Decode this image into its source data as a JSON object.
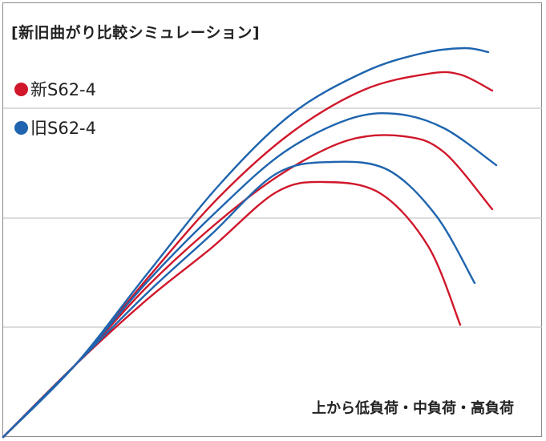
{
  "chart_data": {
    "type": "line",
    "title": "[新旧曲がり比較シミュレーション]",
    "note": "上から低負荷・中負荷・高負荷",
    "grid": true,
    "colors": {
      "new": "#d0172b",
      "old": "#1e64ae"
    },
    "series": [
      {
        "name": "新S62-4",
        "legend_label": "新S62-4",
        "color": "#d0172b"
      },
      {
        "name": "旧S62-4",
        "legend_label": "旧S62-4",
        "color": "#1e64ae"
      }
    ],
    "curves": [
      {
        "series": "新S62-4",
        "load": "低負荷",
        "points": [
          [
            0,
            0
          ],
          [
            90,
            90
          ],
          [
            180,
            198
          ],
          [
            270,
            300
          ],
          [
            360,
            380
          ],
          [
            450,
            433
          ],
          [
            530,
            453
          ],
          [
            570,
            452
          ],
          [
            610,
            432
          ]
        ]
      },
      {
        "series": "旧S62-4",
        "load": "低負荷",
        "points": [
          [
            0,
            0
          ],
          [
            90,
            90
          ],
          [
            180,
            204
          ],
          [
            270,
            315
          ],
          [
            360,
            403
          ],
          [
            450,
            455
          ],
          [
            520,
            478
          ],
          [
            575,
            485
          ],
          [
            605,
            480
          ]
        ]
      },
      {
        "series": "新S62-4",
        "load": "中負荷",
        "points": [
          [
            0,
            0
          ],
          [
            90,
            90
          ],
          [
            180,
            188
          ],
          [
            270,
            270
          ],
          [
            350,
            330
          ],
          [
            430,
            370
          ],
          [
            500,
            375
          ],
          [
            550,
            355
          ],
          [
            610,
            284
          ]
        ]
      },
      {
        "series": "旧S62-4",
        "load": "中負荷",
        "points": [
          [
            0,
            0
          ],
          [
            90,
            90
          ],
          [
            180,
            194
          ],
          [
            270,
            285
          ],
          [
            350,
            355
          ],
          [
            430,
            396
          ],
          [
            490,
            403
          ],
          [
            550,
            385
          ],
          [
            615,
            339
          ]
        ]
      },
      {
        "series": "新S62-4",
        "load": "高負荷",
        "points": [
          [
            0,
            0
          ],
          [
            90,
            90
          ],
          [
            180,
            172
          ],
          [
            260,
            236
          ],
          [
            340,
            305
          ],
          [
            400,
            318
          ],
          [
            470,
            304
          ],
          [
            530,
            238
          ],
          [
            570,
            140
          ]
        ]
      },
      {
        "series": "旧S62-4",
        "load": "高負荷",
        "points": [
          [
            0,
            0
          ],
          [
            90,
            90
          ],
          [
            180,
            180
          ],
          [
            260,
            253
          ],
          [
            340,
            328
          ],
          [
            410,
            343
          ],
          [
            480,
            333
          ],
          [
            540,
            276
          ],
          [
            588,
            192
          ]
        ]
      }
    ],
    "gridlines_y": [
      137,
      273,
      410
    ]
  }
}
